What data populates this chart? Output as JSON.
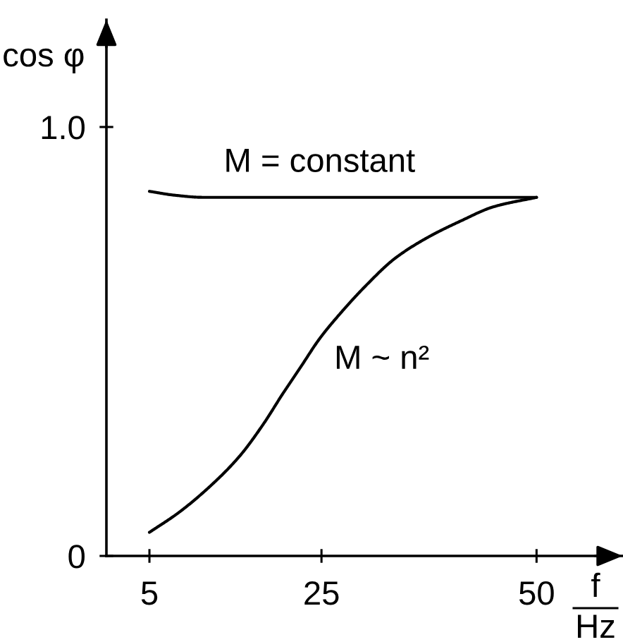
{
  "chart_data": {
    "type": "line",
    "xlabel": "f\nHz",
    "ylabel": "cos φ",
    "xlim": [
      0,
      60
    ],
    "xticks": [
      5,
      25,
      50
    ],
    "ylim": [
      0,
      1.25
    ],
    "yticks": [
      0,
      {
        "value": 1.0,
        "label": "1.0"
      }
    ],
    "line_style": "solid",
    "series": [
      {
        "name": "M = constant",
        "color": "#000000",
        "x": [
          5,
          7.9,
          11.2,
          20,
          30,
          40,
          50
        ],
        "values": [
          0.85,
          0.841,
          0.836,
          0.836,
          0.836,
          0.836,
          0.836
        ]
      },
      {
        "name": "M ~ n²",
        "color": "#000000",
        "x": [
          5,
          8.4,
          12.3,
          15.5,
          18.3,
          20.4,
          22.6,
          24.8,
          27.0,
          30.3,
          33.5,
          37.3,
          41.2,
          45.0,
          50
        ],
        "values": [
          0.055,
          0.101,
          0.167,
          0.233,
          0.309,
          0.375,
          0.441,
          0.507,
          0.561,
          0.633,
          0.693,
          0.742,
          0.781,
          0.814,
          0.836
        ]
      }
    ]
  }
}
